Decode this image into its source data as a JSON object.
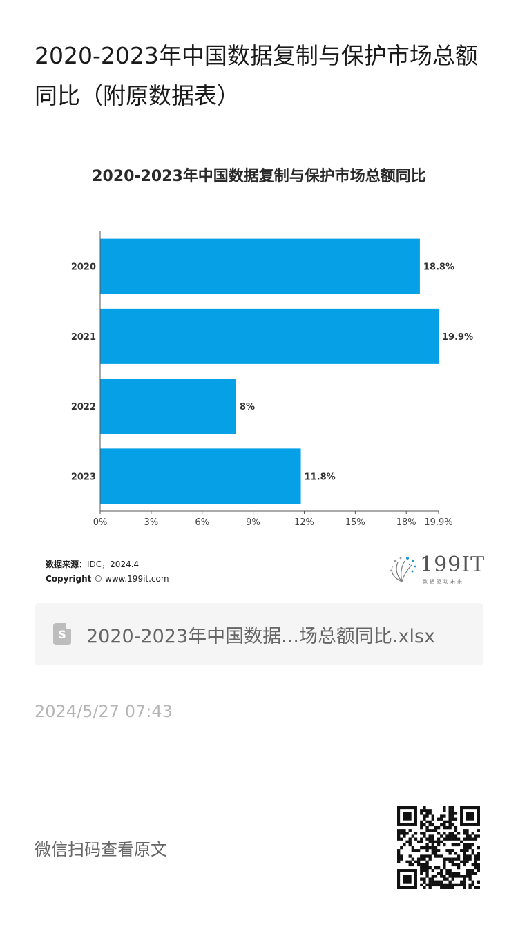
{
  "page": {
    "title": "2020-2023年中国数据复制与保护市场总额同比（附原数据表）",
    "source_label": "数据来源：",
    "source_value": "IDC，2024.4",
    "copyright_label": "Copyright",
    "copyright_value": "© www.199it.com",
    "brand_name": "199IT",
    "brand_tagline": "数据驱动未来",
    "file_icon_letter": "S",
    "file_name": "2020-2023年中国数据...场总额同比.xlsx",
    "timestamp": "2024/5/27 07:43",
    "qr_label": "微信扫码查看原文"
  },
  "colors": {
    "bar": "#05a0e6",
    "axis": "#555555"
  },
  "icons": {
    "file": "spreadsheet-file-icon",
    "logo": "199it-logo-icon",
    "qr": "qr-code-icon"
  },
  "chart_data": {
    "type": "bar",
    "orientation": "horizontal",
    "title": "2020-2023年中国数据复制与保护市场总额同比",
    "categories": [
      "2020",
      "2021",
      "2022",
      "2023"
    ],
    "values": [
      18.8,
      19.9,
      8,
      11.8
    ],
    "value_labels": [
      "18.8%",
      "19.9%",
      "8%",
      "11.8%"
    ],
    "xlim": [
      0,
      19.9
    ],
    "x_ticks": [
      0,
      3,
      6,
      9,
      12,
      15,
      18,
      19.9
    ],
    "x_tick_labels": [
      "0%",
      "3%",
      "6%",
      "9%",
      "12%",
      "15%",
      "18%",
      "19.9%"
    ],
    "grid": false,
    "legend": "none"
  }
}
